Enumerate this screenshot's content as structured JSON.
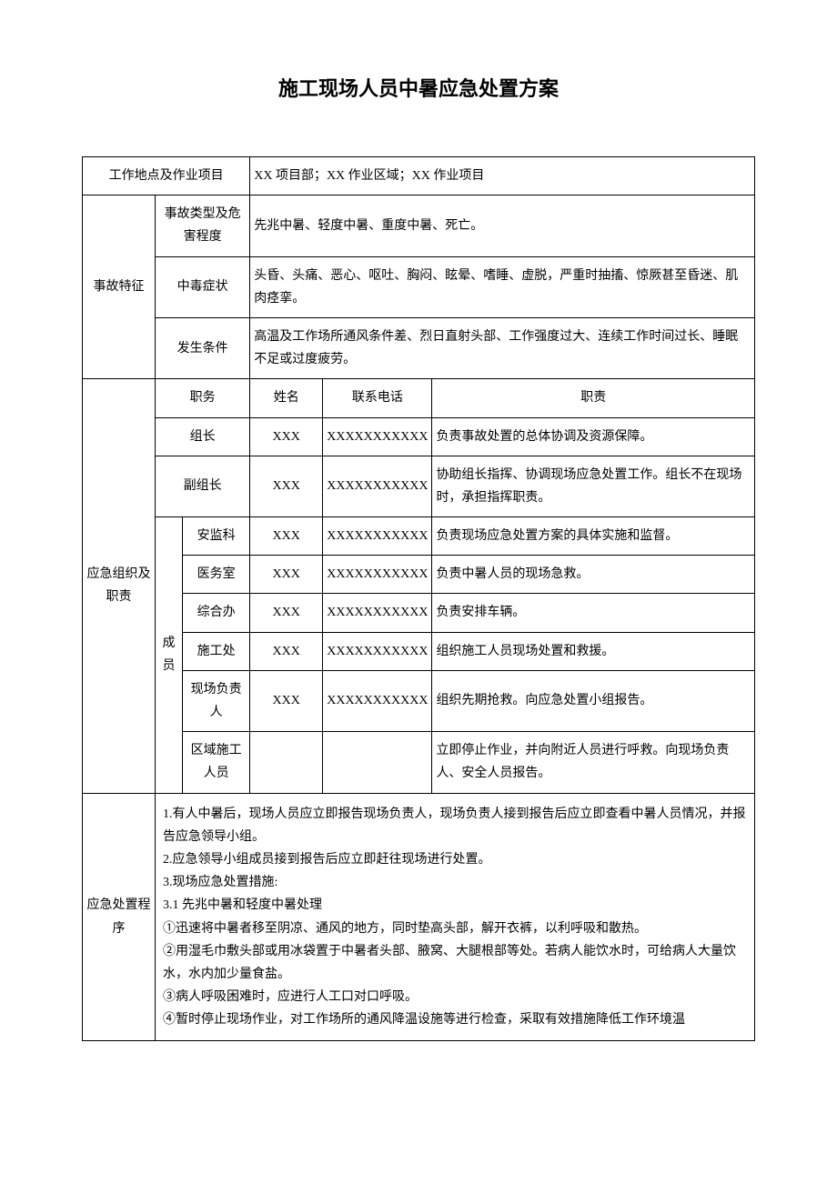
{
  "title": "施工现场人员中暑应急处置方案",
  "row1": {
    "label": "工作地点及作业项目",
    "value": "XX 项目部；XX 作业区域；XX 作业项目"
  },
  "section1": {
    "label": "事故特征",
    "rows": [
      {
        "sub": "事故类型及危害程度",
        "value": "先兆中暑、轻度中暑、重度中暑、死亡。"
      },
      {
        "sub": "中毒症状",
        "value": "头昏、头痛、恶心、呕吐、胸闷、眩晕、嗜睡、虚脱，严重时抽搐、惊厥甚至昏迷、肌肉痉挛。"
      },
      {
        "sub": "发生条件",
        "value": "高温及工作场所通风条件差、烈日直射头部、工作强度过大、连续工作时间过长、睡眠不足或过度疲劳。"
      }
    ]
  },
  "section2": {
    "label": "应急组织及职责",
    "header": {
      "c1": "职务",
      "c2": "姓名",
      "c3": "联系电话",
      "c4": "职责"
    },
    "rows": [
      {
        "role": "组长",
        "name": "XXX",
        "phone": "XXXXXXXXXXX",
        "duty": "负责事故处置的总体协调及资源保障。"
      },
      {
        "role": "副组长",
        "name": "XXX",
        "phone": "XXXXXXXXXXX",
        "duty": "协助组长指挥、协调现场应急处置工作。组长不在现场时，承担指挥职责。"
      }
    ],
    "member_label": "成员",
    "members": [
      {
        "role": "安监科",
        "name": "XXX",
        "phone": "XXXXXXXXXXX",
        "duty": "负责现场应急处置方案的具体实施和监督。"
      },
      {
        "role": "医务室",
        "name": "XXX",
        "phone": "XXXXXXXXXXX",
        "duty": "负责中暑人员的现场急救。"
      },
      {
        "role": "综合办",
        "name": "XXX",
        "phone": "XXXXXXXXXXX",
        "duty": "负责安排车辆。"
      },
      {
        "role": "施工处",
        "name": "XXX",
        "phone": "XXXXXXXXXXX",
        "duty": "组织施工人员现场处置和救援。"
      },
      {
        "role": "现场负责人",
        "name": "XXX",
        "phone": "XXXXXXXXXXX",
        "duty": "组织先期抢救。向应急处置小组报告。"
      },
      {
        "role": "区域施工人员",
        "name": "",
        "phone": "",
        "duty": "立即停止作业，并向附近人员进行呼救。向现场负责人、安全人员报告。"
      }
    ]
  },
  "section3": {
    "label": "应急处置程序",
    "lines": [
      "1.有人中暑后，现场人员应立即报告现场负责人，现场负责人接到报告后应立即查看中暑人员情况，并报告应急领导小组。",
      "2.应急领导小组成员接到报告后应立即赶往现场进行处置。",
      "3.现场应急处置措施:",
      "3.1  先兆中暑和轻度中暑处理",
      "①迅速将中暑者移至阴凉、通风的地方，同时垫高头部，解开衣裤，以利呼吸和散热。",
      "②用湿毛巾敷头部或用冰袋置于中暑者头部、腋窝、大腿根部等处。若病人能饮水时，可给病人大量饮水，水内加少量食盐。",
      "③病人呼吸困难时，应进行人工口对口呼吸。",
      "④暂时停止现场作业，对工作场所的通风降温设施等进行检查，采取有效措施降低工作环境温"
    ]
  }
}
